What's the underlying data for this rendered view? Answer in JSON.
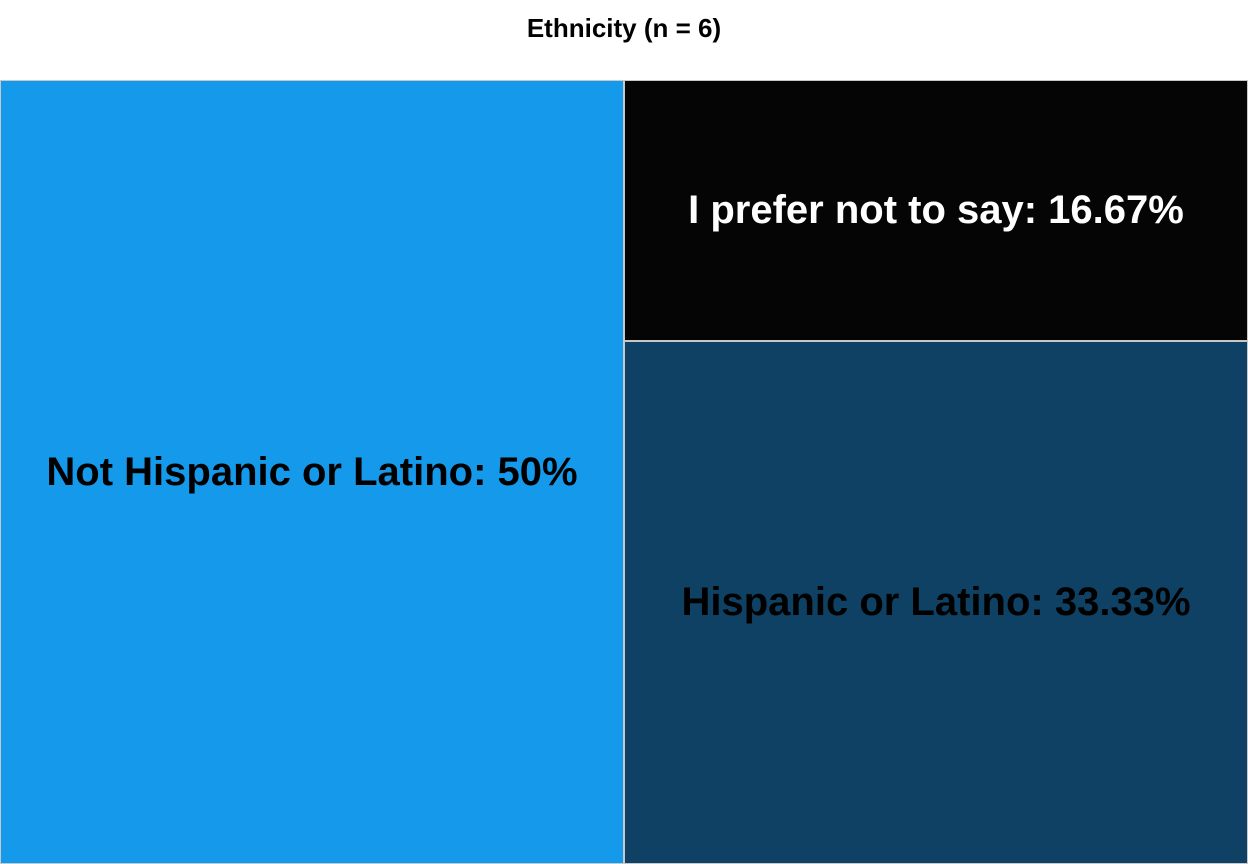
{
  "chart_data": {
    "type": "treemap",
    "title": "Ethnicity (n = 6)",
    "items": [
      {
        "name": "Not Hispanic or Latino",
        "value": 50,
        "label": "Not Hispanic or Latino: 50%",
        "color": "#1599ea",
        "text_color": "#000000"
      },
      {
        "name": "I prefer not to say",
        "value": 16.67,
        "label": "I prefer not to say: 16.67%",
        "color": "#050505",
        "text_color": "#ffffff"
      },
      {
        "name": "Hispanic or Latino",
        "value": 33.33,
        "label": "Hispanic or Latino: 33.33%",
        "color": "#0e4163",
        "text_color": "#000000"
      }
    ]
  }
}
